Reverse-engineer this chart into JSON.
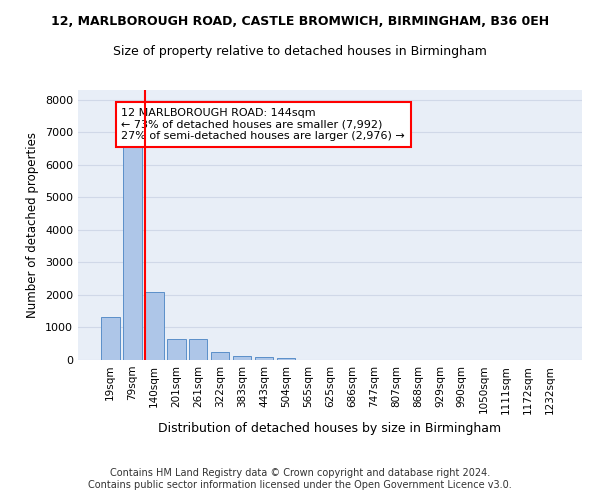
{
  "title": "12, MARLBOROUGH ROAD, CASTLE BROMWICH, BIRMINGHAM, B36 0EH",
  "subtitle": "Size of property relative to detached houses in Birmingham",
  "xlabel": "Distribution of detached houses by size in Birmingham",
  "ylabel": "Number of detached properties",
  "footer_line1": "Contains HM Land Registry data © Crown copyright and database right 2024.",
  "footer_line2": "Contains public sector information licensed under the Open Government Licence v3.0.",
  "bin_labels": [
    "19sqm",
    "79sqm",
    "140sqm",
    "201sqm",
    "261sqm",
    "322sqm",
    "383sqm",
    "443sqm",
    "504sqm",
    "565sqm",
    "625sqm",
    "686sqm",
    "747sqm",
    "807sqm",
    "868sqm",
    "929sqm",
    "990sqm",
    "1050sqm",
    "1111sqm",
    "1172sqm",
    "1232sqm"
  ],
  "bar_values": [
    1310,
    6580,
    2080,
    650,
    650,
    255,
    130,
    95,
    60,
    0,
    0,
    0,
    0,
    0,
    0,
    0,
    0,
    0,
    0,
    0,
    0
  ],
  "bar_color": "#aec6e8",
  "bar_edgecolor": "#5b8fc9",
  "grid_color": "#d0d8e8",
  "background_color": "#e8eef7",
  "annotation_text": "12 MARLBOROUGH ROAD: 144sqm\n← 73% of detached houses are smaller (7,992)\n27% of semi-detached houses are larger (2,976) →",
  "annotation_box_edgecolor": "red",
  "vline_x_index": 2,
  "vline_color": "red",
  "ylim": [
    0,
    8300
  ],
  "yticks": [
    0,
    1000,
    2000,
    3000,
    4000,
    5000,
    6000,
    7000,
    8000
  ]
}
